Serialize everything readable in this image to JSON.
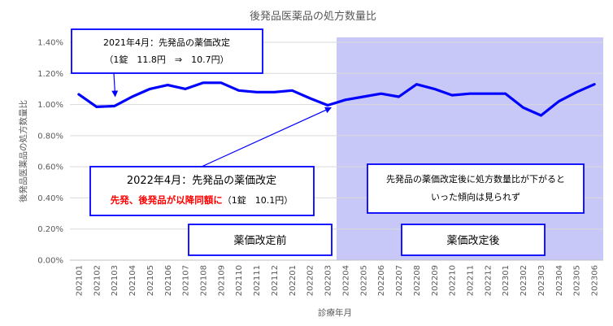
{
  "chart_data": {
    "type": "line",
    "title": "後発品医薬品の処方数量比",
    "xlabel": "診療年月",
    "ylabel": "後発品医薬品の処方数量比",
    "ylim": [
      0,
      0.014
    ],
    "y_ticks": [
      "0.00%",
      "0.20%",
      "0.40%",
      "0.60%",
      "0.80%",
      "1.00%",
      "1.20%",
      "1.40%"
    ],
    "grid": "horizontal",
    "line_color": "#0000ff",
    "x": [
      "202101",
      "202102",
      "202103",
      "202104",
      "202105",
      "202106",
      "202107",
      "202108",
      "202109",
      "202110",
      "202111",
      "202112",
      "202201",
      "202202",
      "202203",
      "202204",
      "202205",
      "202206",
      "202207",
      "202208",
      "202209",
      "202210",
      "202211",
      "202212",
      "202301",
      "202302",
      "202303",
      "202304",
      "202305",
      "202306"
    ],
    "series": [
      {
        "values": [
          0.01065,
          0.00985,
          0.0099,
          0.0105,
          0.011,
          0.01125,
          0.011,
          0.0114,
          0.0114,
          0.0109,
          0.0108,
          0.0108,
          0.0109,
          0.0104,
          0.00995,
          0.0103,
          0.0105,
          0.0107,
          0.0105,
          0.0113,
          0.011,
          0.0106,
          0.0107,
          0.0107,
          0.0107,
          0.0098,
          0.0093,
          0.0102,
          0.0108,
          0.0113
        ]
      }
    ],
    "shaded_region": {
      "from": "202204",
      "to": "202306",
      "color": "#c8c8f8"
    },
    "annotations": {
      "revision_2021": {
        "line1": "2021年4月：先発品の薬価改定",
        "line2": "（1錠　11.8円　⇒　10.7円）",
        "points_to": "202103"
      },
      "revision_2022": {
        "line1": "2022年4月：先発品の薬価改定",
        "line2_red": "先発、後発品が以降同額に",
        "line2_black": "（1錠　10.1円）",
        "points_to": "202203"
      },
      "after_note": {
        "line1": "先発品の薬価改定後に処方数量比が下がると",
        "line2": "いった傾向は見られず"
      },
      "before_label": "薬価改定前",
      "after_label": "薬価改定後"
    }
  }
}
